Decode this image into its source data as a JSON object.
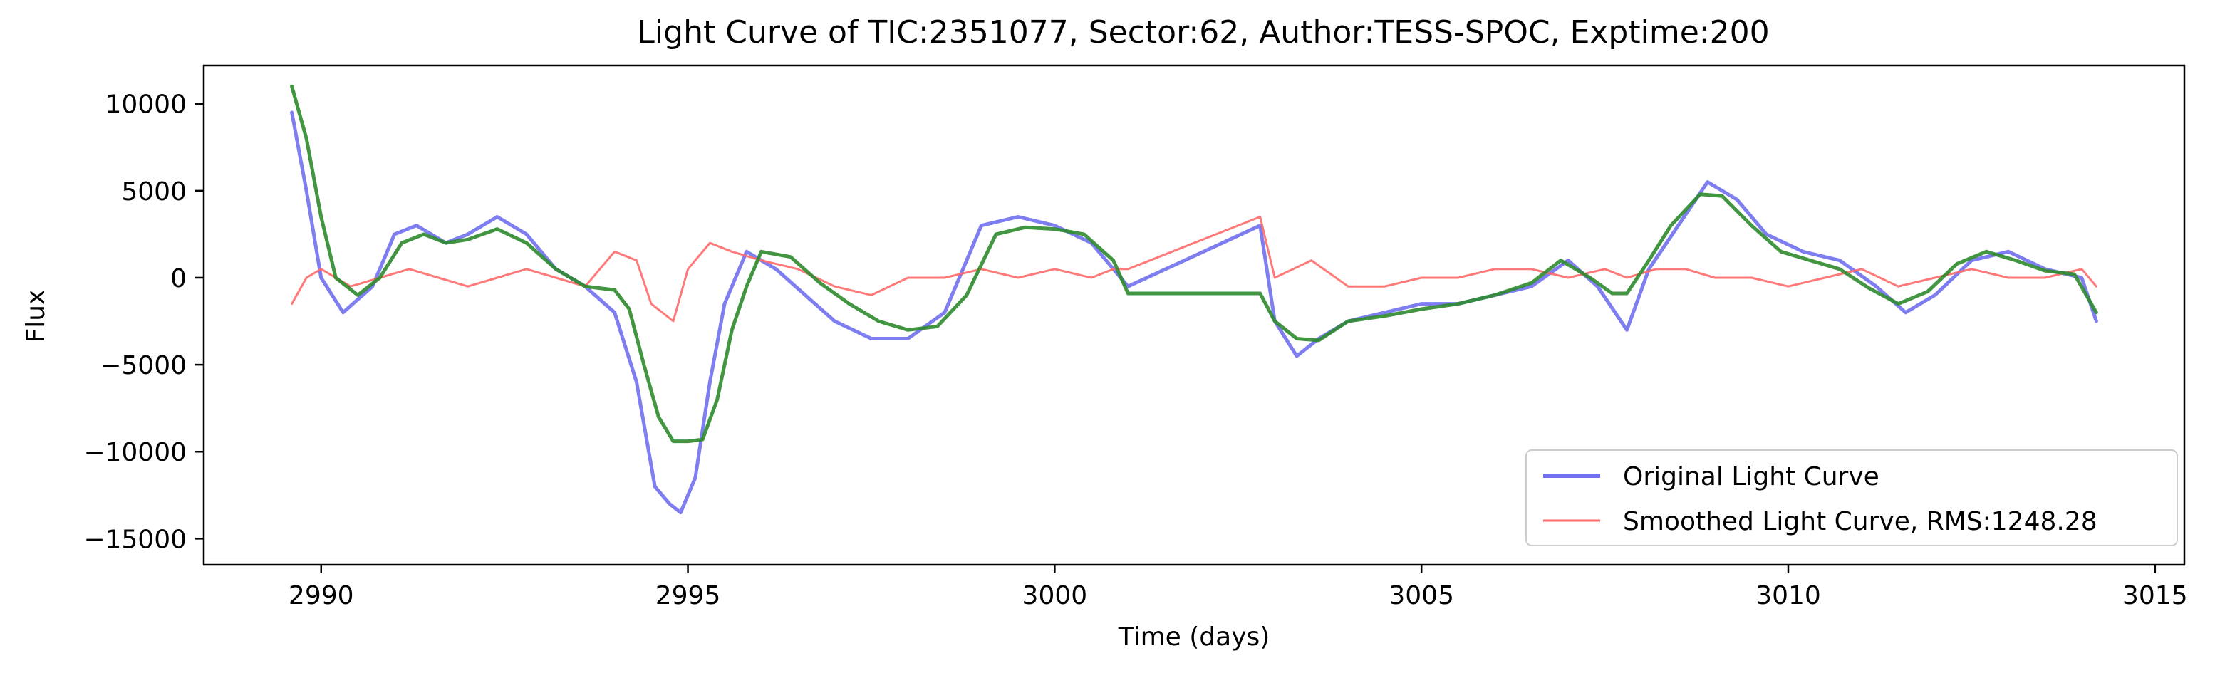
{
  "chart_data": {
    "type": "line",
    "title": "Light Curve of TIC:2351077, Sector:62, Author:TESS-SPOC, Exptime:200",
    "xlabel": "Time (days)",
    "ylabel": "Flux",
    "xlim": [
      2988.4,
      3015.4
    ],
    "ylim": [
      -16500,
      12200
    ],
    "xticks": [
      2990,
      2995,
      3000,
      3005,
      3010,
      3015
    ],
    "yticks": [
      -15000,
      -10000,
      -5000,
      0,
      5000,
      10000
    ],
    "xtick_labels": [
      "2990",
      "2995",
      "3000",
      "3005",
      "3010",
      "3015"
    ],
    "ytick_labels": [
      "−15000",
      "−10000",
      "−5000",
      "0",
      "5000",
      "10000"
    ],
    "grid": false,
    "legend": {
      "location": "lower right",
      "entries": [
        "Original Light Curve",
        "Smoothed Light Curve, RMS:1248.28"
      ]
    },
    "series": [
      {
        "name": "Original Light Curve",
        "color": "#7070f0",
        "x": [
          2989.6,
          2989.8,
          2990.0,
          2990.3,
          2990.7,
          2991.0,
          2991.3,
          2991.7,
          2992.0,
          2992.4,
          2992.8,
          2993.2,
          2993.6,
          2994.0,
          2994.3,
          2994.55,
          2994.75,
          2994.9,
          2995.1,
          2995.3,
          2995.5,
          2995.8,
          2996.2,
          2996.6,
          2997.0,
          2997.5,
          2998.0,
          2998.5,
          2999.0,
          2999.5,
          3000.0,
          3000.5,
          3000.8,
          3001.0,
          3002.8,
          3003.0,
          3003.3,
          3003.6,
          3004.0,
          3004.5,
          3005.0,
          3005.5,
          3006.0,
          3006.5,
          3007.0,
          3007.4,
          3007.8,
          3008.1,
          3008.5,
          3008.9,
          3009.3,
          3009.7,
          3010.2,
          3010.7,
          3011.2,
          3011.6,
          3012.0,
          3012.5,
          3013.0,
          3013.5,
          3014.0,
          3014.2
        ],
        "y": [
          9500,
          5000,
          0,
          -2000,
          -500,
          2500,
          3000,
          2000,
          2500,
          3500,
          2500,
          500,
          -500,
          -2000,
          -6000,
          -12000,
          -13000,
          -13500,
          -11500,
          -6000,
          -1500,
          1500,
          500,
          -1000,
          -2500,
          -3500,
          -3500,
          -2000,
          3000,
          3500,
          3000,
          2000,
          500,
          -500,
          3000,
          -2500,
          -4500,
          -3500,
          -2500,
          -2000,
          -1500,
          -1500,
          -1000,
          -500,
          1000,
          -500,
          -3000,
          500,
          3000,
          5500,
          4500,
          2500,
          1500,
          1000,
          -500,
          -2000,
          -1000,
          1000,
          1500,
          500,
          0,
          -2500
        ]
      },
      {
        "name": "Smoothed Light Curve, RMS:1248.28",
        "color": "#ff6a6a",
        "x": [
          2989.6,
          2989.8,
          2990.0,
          2990.4,
          2990.8,
          2991.2,
          2991.6,
          2992.0,
          2992.4,
          2992.8,
          2993.2,
          2993.6,
          2994.0,
          2994.3,
          2994.5,
          2994.8,
          2995.0,
          2995.3,
          2995.6,
          2996.0,
          2996.5,
          2997.0,
          2997.5,
          2998.0,
          2998.5,
          2999.0,
          2999.5,
          3000.0,
          3000.5,
          3000.8,
          3001.0,
          3002.8,
          3003.0,
          3003.5,
          3004.0,
          3004.5,
          3005.0,
          3005.5,
          3006.0,
          3006.5,
          3007.0,
          3007.5,
          3007.8,
          3008.2,
          3008.6,
          3009.0,
          3009.5,
          3010.0,
          3010.5,
          3011.0,
          3011.5,
          3012.0,
          3012.5,
          3013.0,
          3013.5,
          3014.0,
          3014.2
        ],
        "y": [
          -1500,
          0,
          500,
          -500,
          0,
          500,
          0,
          -500,
          0,
          500,
          0,
          -500,
          1500,
          1000,
          -1500,
          -2500,
          500,
          2000,
          1500,
          1000,
          500,
          -500,
          -1000,
          0,
          0,
          500,
          0,
          500,
          0,
          500,
          500,
          3500,
          0,
          1000,
          -500,
          -500,
          0,
          0,
          500,
          500,
          0,
          500,
          0,
          500,
          500,
          0,
          0,
          -500,
          0,
          500,
          -500,
          0,
          500,
          0,
          0,
          500,
          -500
        ]
      },
      {
        "name": "",
        "color": "#2e8b2e",
        "x": [
          2989.6,
          2989.8,
          2990.0,
          2990.2,
          2990.5,
          2990.8,
          2991.1,
          2991.4,
          2991.7,
          2992.0,
          2992.4,
          2992.8,
          2993.2,
          2993.6,
          2994.0,
          2994.2,
          2994.4,
          2994.6,
          2994.8,
          2995.0,
          2995.2,
          2995.4,
          2995.6,
          2995.8,
          2996.0,
          2996.4,
          2996.8,
          2997.2,
          2997.6,
          2998.0,
          2998.4,
          2998.8,
          2999.2,
          2999.6,
          3000.0,
          3000.4,
          3000.8,
          3001.0,
          3002.8,
          3003.0,
          3003.3,
          3003.6,
          3004.0,
          3004.5,
          3005.0,
          3005.5,
          3006.0,
          3006.5,
          3006.9,
          3007.3,
          3007.6,
          3007.8,
          3008.1,
          3008.4,
          3008.8,
          3009.1,
          3009.5,
          3009.9,
          3010.3,
          3010.7,
          3011.1,
          3011.5,
          3011.9,
          3012.3,
          3012.7,
          3013.1,
          3013.5,
          3013.9,
          3014.2
        ],
        "y": [
          11000,
          8000,
          3500,
          0,
          -1000,
          0,
          2000,
          2500,
          2000,
          2200,
          2800,
          2000,
          500,
          -500,
          -700,
          -1800,
          -5000,
          -8000,
          -9400,
          -9400,
          -9300,
          -7000,
          -3000,
          -500,
          1500,
          1200,
          -300,
          -1500,
          -2500,
          -3000,
          -2800,
          -1000,
          2500,
          2900,
          2800,
          2500,
          1000,
          -900,
          -900,
          -2500,
          -3500,
          -3600,
          -2500,
          -2200,
          -1800,
          -1500,
          -1000,
          -300,
          1000,
          0,
          -900,
          -900,
          1000,
          3000,
          4800,
          4700,
          3000,
          1500,
          1000,
          500,
          -600,
          -1500,
          -800,
          800,
          1500,
          1000,
          400,
          200,
          -2000
        ]
      }
    ]
  }
}
